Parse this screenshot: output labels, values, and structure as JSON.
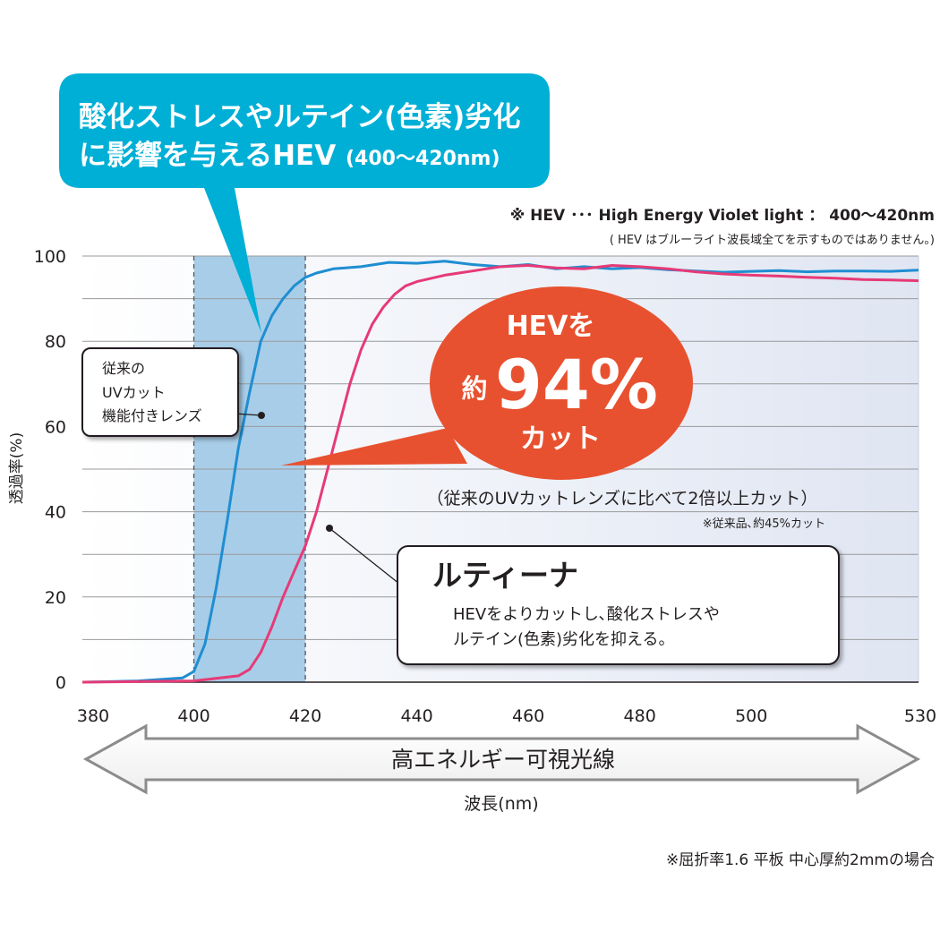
{
  "chart_data": {
    "type": "line",
    "title": "",
    "xlabel": "波長(nm)",
    "ylabel": "透過率(%)",
    "xlim": [
      380,
      530
    ],
    "ylim": [
      0,
      100
    ],
    "xticks": [
      380,
      400,
      420,
      440,
      460,
      480,
      500,
      530
    ],
    "yticks": [
      0,
      20,
      40,
      60,
      80,
      100
    ],
    "grid": true,
    "highlight_band": [
      400,
      420
    ],
    "series": [
      {
        "name": "従来のUVカット機能付きレンズ",
        "color": "#1f8ed1",
        "x": [
          380,
          390,
          398,
          400,
          402,
          404,
          406,
          408,
          410,
          412,
          414,
          416,
          418,
          420,
          422,
          425,
          430,
          435,
          440,
          445,
          450,
          455,
          460,
          465,
          470,
          475,
          480,
          485,
          490,
          495,
          500,
          505,
          510,
          515,
          520,
          525,
          530
        ],
        "y": [
          0,
          0.3,
          1,
          2.5,
          9,
          22,
          38,
          55,
          68,
          80,
          86,
          90,
          93,
          95,
          96,
          97,
          97.5,
          98.5,
          98.3,
          98.8,
          98,
          97.5,
          98,
          97,
          97.5,
          97,
          97.3,
          96.8,
          96.5,
          96.2,
          96.4,
          96.6,
          96.3,
          96.5,
          96.5,
          96.4,
          96.7
        ]
      },
      {
        "name": "ルティーナ",
        "color": "#e63a77",
        "x": [
          380,
          400,
          408,
          410,
          412,
          414,
          416,
          418,
          420,
          422,
          424,
          426,
          428,
          430,
          432,
          434,
          436,
          438,
          440,
          445,
          450,
          455,
          460,
          465,
          470,
          475,
          480,
          485,
          490,
          495,
          500,
          505,
          510,
          515,
          520,
          525,
          530
        ],
        "y": [
          0,
          0.3,
          1.5,
          3,
          7,
          13,
          20,
          26,
          32,
          40,
          50,
          60,
          70,
          78,
          84,
          88,
          91,
          93,
          94,
          95.5,
          96.5,
          97.5,
          97.8,
          97.2,
          97,
          97.8,
          97.5,
          97,
          96.3,
          95.8,
          95.5,
          95.3,
          95,
          94.8,
          94.5,
          94.4,
          94.2
        ]
      }
    ]
  },
  "callout_top": {
    "line1": "酸化ストレスやルテイン(色素)劣化",
    "line2_main": "に影響を与えるHEV ",
    "line2_small": "(400〜420nm)",
    "color": "#00b0d8"
  },
  "hev_note": {
    "line1": "※ HEV ･･･ High Energy Violet light ： 400〜420nm",
    "line2": "( HEV はブルーライト波長域全てを示すものではありません。)"
  },
  "legacy_box": {
    "line1": "従来の",
    "line2": "UVカット",
    "line3": "機能付きレンズ"
  },
  "cut_bubble": {
    "line1": "HEVを",
    "yaku": "約",
    "percent": "94%",
    "line3": "カット",
    "color": "#e8512f"
  },
  "compare": {
    "main": "（従来のUVカットレンズに比べて2倍以上カット）",
    "note": "※従来品､約45%カット"
  },
  "rutina_box": {
    "title": "ルティーナ",
    "desc1": "HEVをよりカットし､酸化ストレスや",
    "desc2": "ルテイン(色素)劣化を抑える。"
  },
  "arrow_band": {
    "label": "高エネルギー可視光線"
  },
  "footnote": "※屈折率1.6 平板 中心厚約2mmの場合"
}
